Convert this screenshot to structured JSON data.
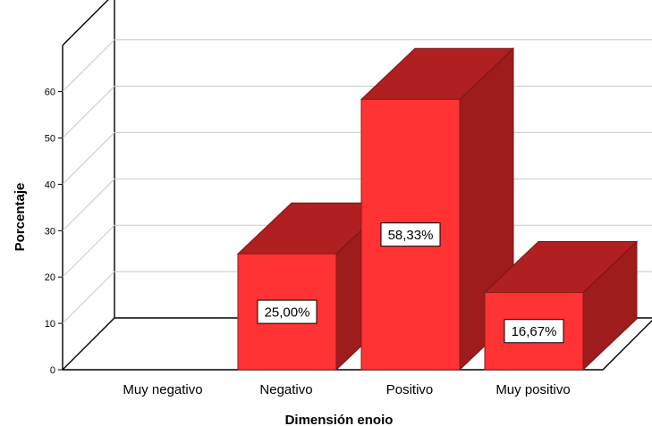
{
  "chart_data": {
    "type": "bar",
    "three_d": true,
    "categories": [
      "Muy negativo",
      "Negativo",
      "Positivo",
      "Muy positivo"
    ],
    "values": [
      0,
      25.0,
      58.33,
      16.67
    ],
    "data_labels": [
      "",
      "25,00%",
      "58,33%",
      "16,67%"
    ],
    "xlabel": "Dimensión enoio",
    "ylabel": "Porcentaje",
    "yticks": [
      0,
      10,
      20,
      30,
      40,
      50,
      60
    ],
    "ylim": [
      0,
      70
    ],
    "grid": true,
    "legend": "none",
    "colors": {
      "front": "#ff3333",
      "top": "#b02020",
      "side": "#9e1c1c",
      "grid": "#c8c8c8",
      "axis": "#000000"
    }
  }
}
